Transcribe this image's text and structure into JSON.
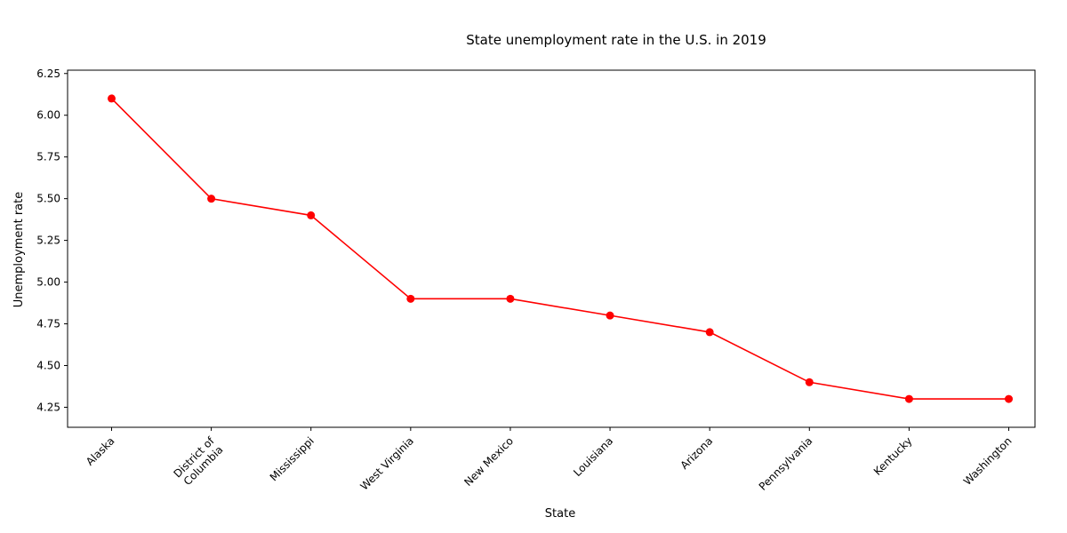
{
  "chart_data": {
    "type": "line",
    "title": "State unemployment rate in the U.S. in 2019",
    "xlabel": "State",
    "ylabel": "Unemployment rate",
    "categories": [
      [
        "Alaska"
      ],
      [
        "District of",
        "Columbia"
      ],
      [
        "Mississippi"
      ],
      [
        "West Virginia"
      ],
      [
        "New Mexico"
      ],
      [
        "Louisiana"
      ],
      [
        "Arizona"
      ],
      [
        "Pennsylvania"
      ],
      [
        "Kentucky"
      ],
      [
        "Washington"
      ]
    ],
    "values": [
      6.1,
      5.5,
      5.4,
      4.9,
      4.9,
      4.8,
      4.7,
      4.4,
      4.3,
      4.3
    ],
    "yticks": [
      "4.25",
      "4.50",
      "4.75",
      "5.00",
      "5.25",
      "5.50",
      "5.75",
      "6.00",
      "6.25"
    ],
    "ylim": [
      4.13,
      6.27
    ],
    "grid": false,
    "line_color": "#ff0000",
    "marker": "circle"
  }
}
